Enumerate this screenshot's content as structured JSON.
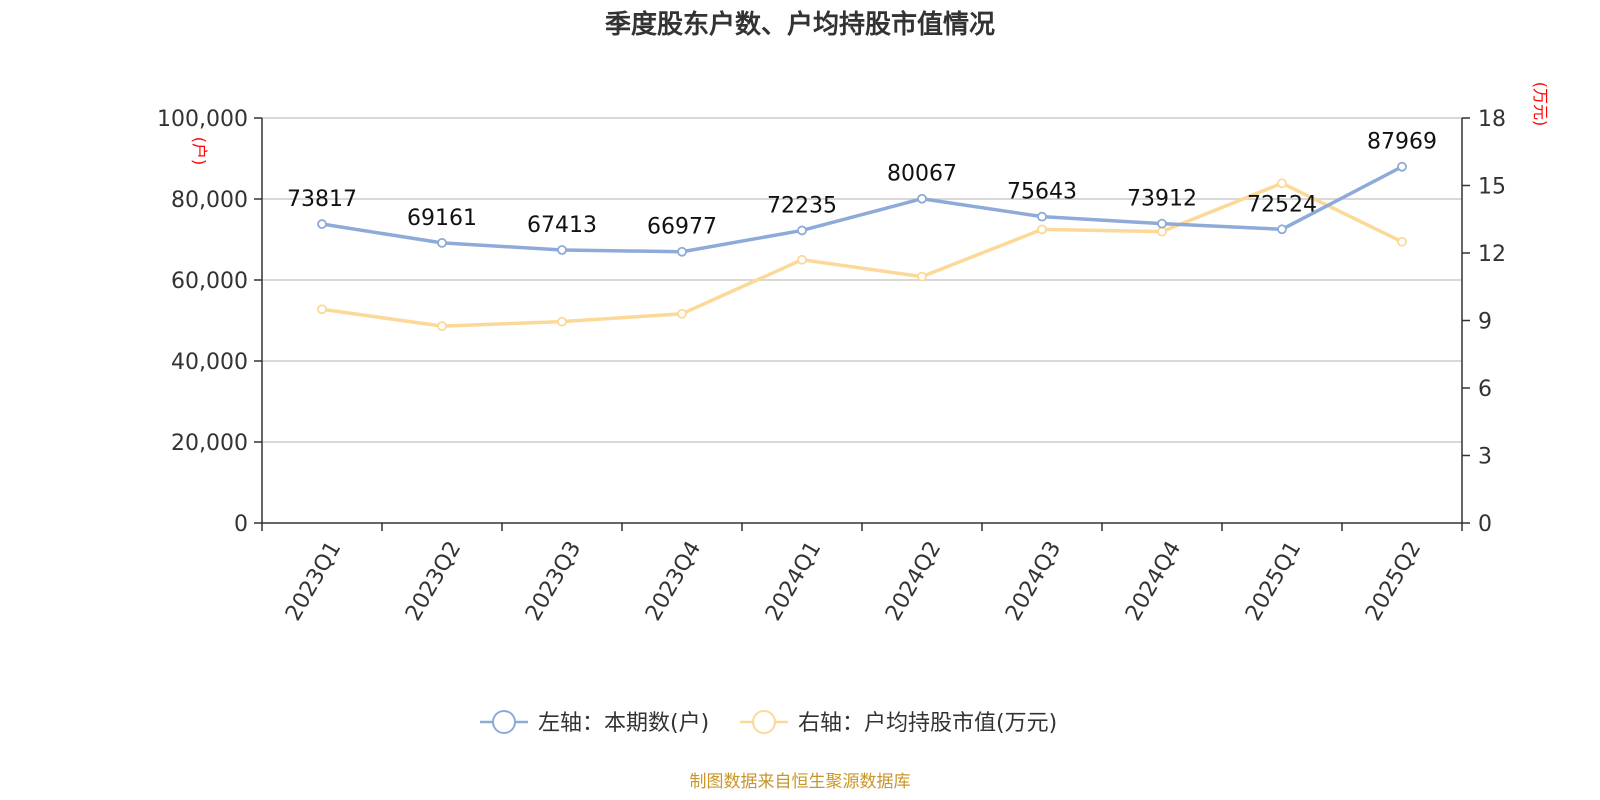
{
  "chart_data": {
    "type": "line",
    "title": "季度股东户数、户均持股市值情况",
    "categories": [
      "2023Q1",
      "2023Q2",
      "2023Q3",
      "2023Q4",
      "2024Q1",
      "2024Q2",
      "2024Q3",
      "2024Q4",
      "2025Q1",
      "2025Q2"
    ],
    "left_axis": {
      "unit": "(户)",
      "range": [
        0,
        100000
      ],
      "ticks": [
        "0",
        "20,000",
        "40,000",
        "60,000",
        "80,000",
        "100,000"
      ],
      "tick_values": [
        0,
        20000,
        40000,
        60000,
        80000,
        100000
      ]
    },
    "right_axis": {
      "unit": "(万元)",
      "range": [
        0,
        18
      ],
      "ticks": [
        "0",
        "3",
        "6",
        "9",
        "12",
        "15",
        "18"
      ],
      "tick_values": [
        0,
        3,
        6,
        9,
        12,
        15,
        18
      ]
    },
    "grid": true,
    "legend_position": "bottom",
    "series": [
      {
        "name": "左轴：本期数(户)",
        "axis": "left",
        "color": "#8eaad8",
        "values": [
          73817,
          69161,
          67413,
          66977,
          72235,
          80067,
          75643,
          73912,
          72524,
          87969
        ],
        "labels": [
          "73817",
          "69161",
          "67413",
          "66977",
          "72235",
          "80067",
          "75643",
          "73912",
          "72524",
          "87969"
        ]
      },
      {
        "name": "右轴：户均持股市值(万元)",
        "axis": "right",
        "color": "#fcd998",
        "values": [
          9.5,
          8.75,
          8.95,
          9.3,
          11.7,
          10.95,
          13.05,
          12.95,
          15.1,
          12.5
        ]
      }
    ],
    "source": "制图数据来自恒生聚源数据库"
  }
}
